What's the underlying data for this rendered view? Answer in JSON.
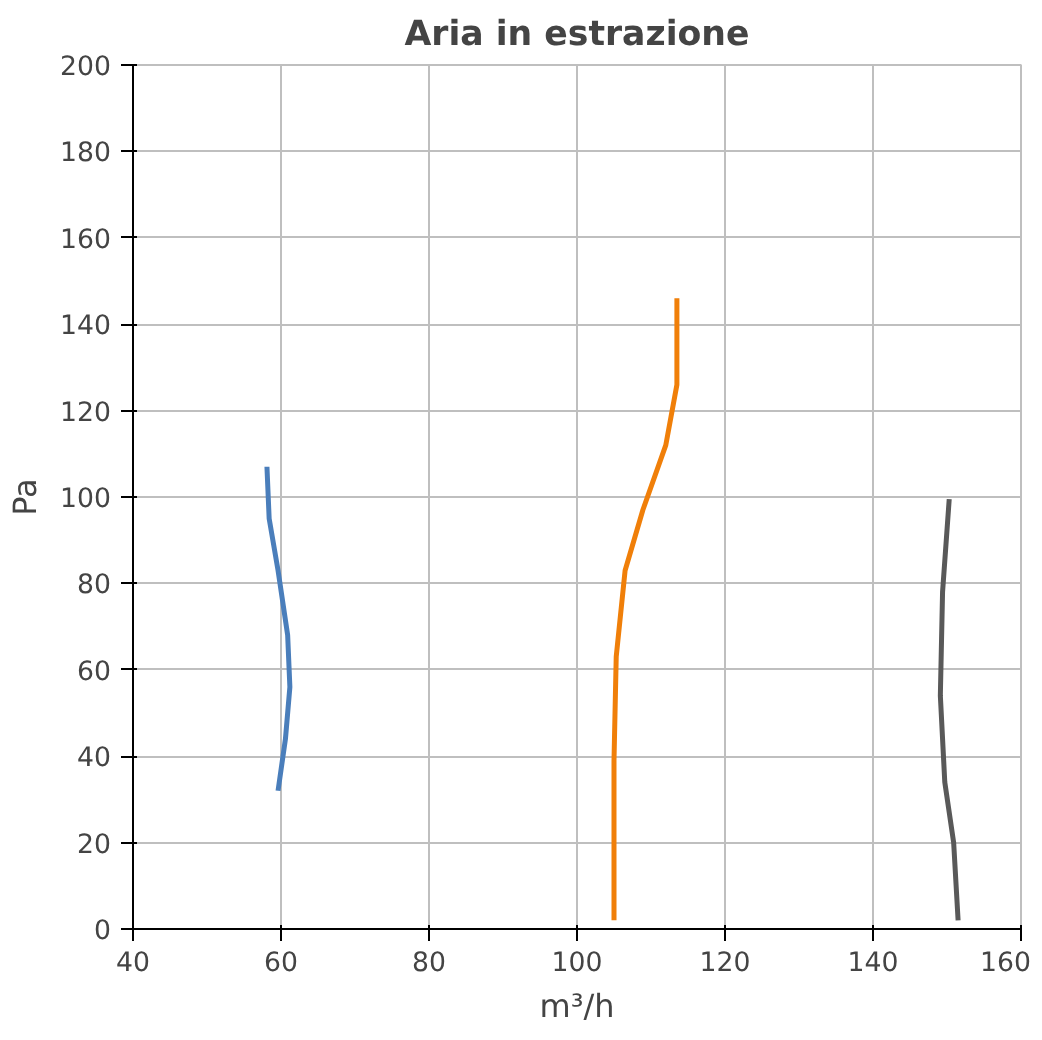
{
  "chart_data": {
    "type": "line",
    "title": "Aria in estrazione",
    "xlabel": "m³/h",
    "ylabel": "Pa",
    "xlim": [
      40,
      160
    ],
    "xticks": [
      40,
      60,
      80,
      100,
      120,
      140,
      160
    ],
    "ylim": [
      0,
      200
    ],
    "yticks": [
      0,
      20,
      40,
      60,
      80,
      100,
      120,
      140,
      160,
      180,
      200
    ],
    "grid": true,
    "line_style": "solid",
    "series": [
      {
        "color": "#4a7ebb",
        "x": [
          58.1,
          58.4,
          59.6,
          60.9,
          61.2,
          60.6,
          59.6
        ],
        "values": [
          107,
          95,
          83,
          68,
          56,
          44,
          32
        ]
      },
      {
        "color": "#f07f09",
        "x": [
          113.5,
          113.5,
          112,
          108.9,
          106.5,
          105.3,
          105,
          105,
          105
        ],
        "values": [
          146,
          126,
          112,
          97,
          83,
          63,
          39,
          15,
          2
        ]
      },
      {
        "color": "#595959",
        "x": [
          150.3,
          149.4,
          149.1,
          149.7,
          150.9,
          151.5
        ],
        "values": [
          99.5,
          78,
          54,
          34,
          20,
          2
        ]
      }
    ]
  }
}
